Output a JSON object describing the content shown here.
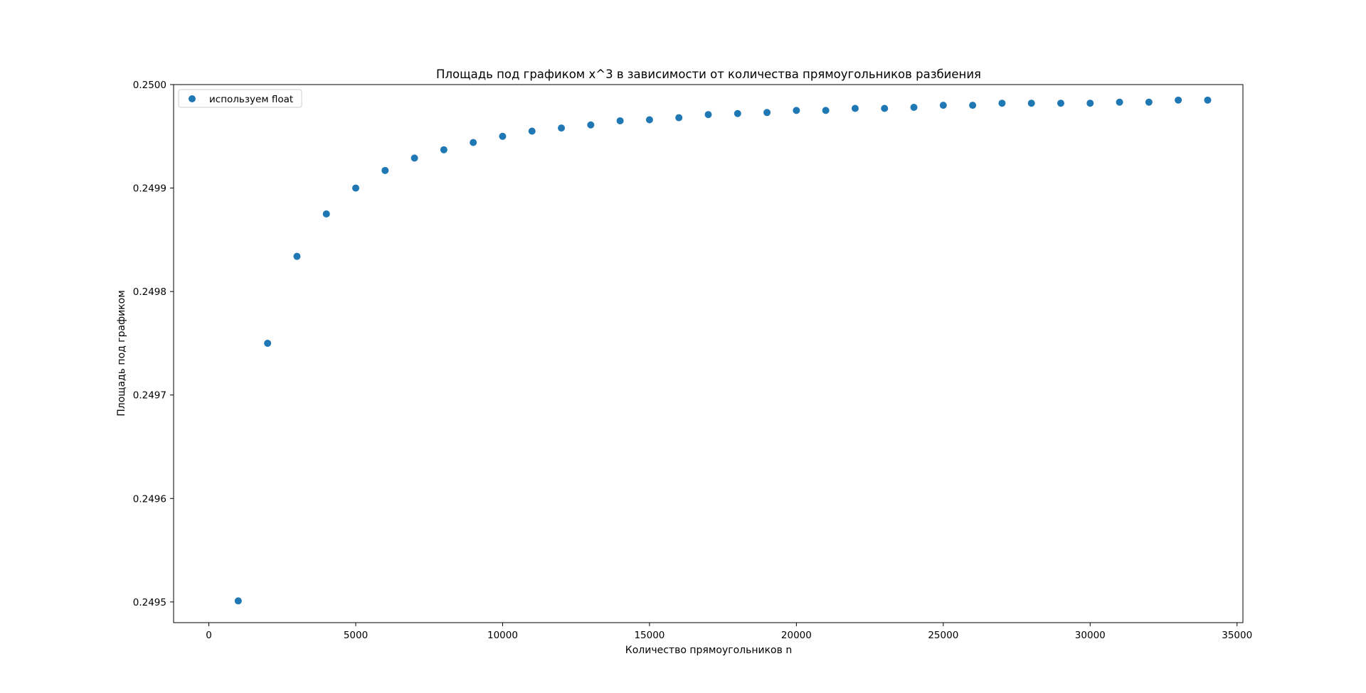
{
  "chart_data": {
    "type": "scatter",
    "title": "Площадь под графиком x^3 в зависимости от количества прямоугольников разбиения",
    "xlabel": "Количество прямоугольников n",
    "ylabel": "Площадь под графиком",
    "xlim": [
      -1200,
      35200
    ],
    "ylim": [
      0.24948,
      0.25
    ],
    "x_ticks": [
      0,
      5000,
      10000,
      15000,
      20000,
      25000,
      30000,
      35000
    ],
    "y_ticks": [
      0.2495,
      0.2496,
      0.2497,
      0.2498,
      0.2499,
      0.25
    ],
    "y_tick_labels": [
      "0.2495",
      "0.2496",
      "0.2497",
      "0.2498",
      "0.2499",
      "0.2500"
    ],
    "grid": false,
    "legend_position": "upper-left",
    "series": [
      {
        "name": "используем float",
        "color": "#1f77b4",
        "marker": "circle",
        "x": [
          1000,
          2000,
          3000,
          4000,
          5000,
          6000,
          7000,
          8000,
          9000,
          10000,
          11000,
          12000,
          13000,
          14000,
          15000,
          16000,
          17000,
          18000,
          19000,
          20000,
          21000,
          22000,
          23000,
          24000,
          25000,
          26000,
          27000,
          28000,
          29000,
          30000,
          31000,
          32000,
          33000,
          34000
        ],
        "y": [
          0.249501,
          0.24975,
          0.249834,
          0.249875,
          0.2499,
          0.249917,
          0.249929,
          0.249937,
          0.249944,
          0.24995,
          0.249955,
          0.249958,
          0.249961,
          0.249965,
          0.249966,
          0.249968,
          0.249971,
          0.249972,
          0.249973,
          0.249975,
          0.249975,
          0.249977,
          0.249977,
          0.249978,
          0.24998,
          0.24998,
          0.249982,
          0.249982,
          0.249982,
          0.249982,
          0.249983,
          0.249983,
          0.249985,
          0.249985
        ]
      }
    ]
  }
}
